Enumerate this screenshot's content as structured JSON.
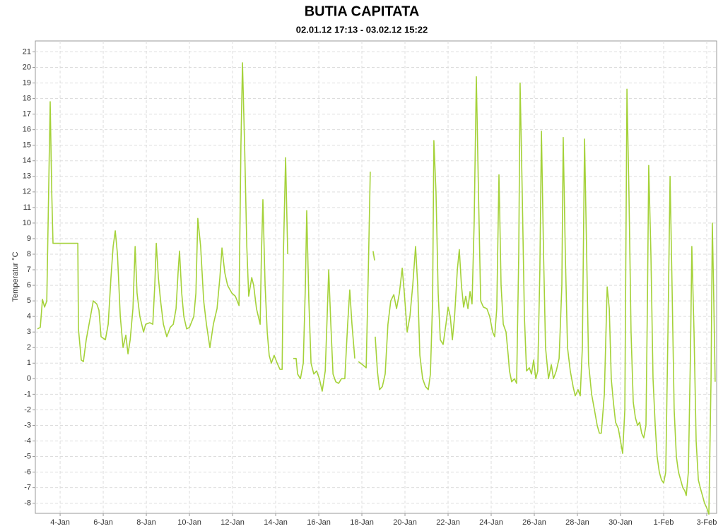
{
  "chart_data": {
    "type": "line",
    "title": "BUTIA CAPITATA",
    "subtitle": "02.01.12 17:13 - 03.02.12 15:22",
    "y_label": "Temperatur  °C",
    "grid": true,
    "xlim": [
      2.85,
      34.46
    ],
    "ylim": [
      -8.65,
      21.7
    ],
    "xticks": [
      {
        "value": 4,
        "label": "4-Jan"
      },
      {
        "value": 6,
        "label": "6-Jan"
      },
      {
        "value": 8,
        "label": "8-Jan"
      },
      {
        "value": 10,
        "label": "10-Jan"
      },
      {
        "value": 12,
        "label": "12-Jan"
      },
      {
        "value": 14,
        "label": "14-Jan"
      },
      {
        "value": 16,
        "label": "16-Jan"
      },
      {
        "value": 18,
        "label": "18-Jan"
      },
      {
        "value": 20,
        "label": "20-Jan"
      },
      {
        "value": 22,
        "label": "22-Jan"
      },
      {
        "value": 24,
        "label": "24-Jan"
      },
      {
        "value": 26,
        "label": "26-Jan"
      },
      {
        "value": 28,
        "label": "28-Jan"
      },
      {
        "value": 30,
        "label": "30-Jan"
      },
      {
        "value": 32,
        "label": "1-Feb"
      },
      {
        "value": 34,
        "label": "3-Feb"
      }
    ],
    "yticks": [
      -8,
      -7,
      -6,
      -5,
      -4,
      -3,
      -2,
      -1,
      0,
      1,
      2,
      3,
      4,
      5,
      6,
      7,
      8,
      9,
      10,
      11,
      12,
      13,
      14,
      15,
      16,
      17,
      18,
      19,
      20,
      21
    ],
    "x": [
      2.95,
      3.08,
      3.18,
      3.28,
      3.38,
      3.48,
      3.54,
      3.61,
      3.67,
      3.74,
      4.82,
      4.85,
      4.98,
      5.08,
      5.21,
      5.38,
      5.54,
      5.7,
      5.8,
      5.9,
      6.1,
      6.23,
      6.36,
      6.46,
      6.56,
      6.66,
      6.79,
      6.92,
      7.05,
      7.15,
      7.25,
      7.38,
      7.48,
      7.57,
      7.7,
      7.87,
      7.97,
      8.16,
      8.3,
      8.39,
      8.46,
      8.56,
      8.66,
      8.79,
      8.95,
      9.11,
      9.25,
      9.38,
      9.48,
      9.54,
      9.64,
      9.74,
      9.87,
      10.0,
      10.2,
      10.3,
      10.39,
      10.52,
      10.66,
      10.79,
      10.95,
      11.11,
      11.28,
      11.41,
      11.51,
      11.64,
      11.77,
      11.97,
      12.13,
      12.3,
      12.39,
      12.46,
      12.56,
      12.66,
      12.75,
      12.89,
      12.98,
      13.11,
      13.28,
      13.34,
      13.41,
      13.51,
      13.61,
      13.7,
      13.8,
      13.93,
      14.07,
      14.2,
      14.3,
      14.36,
      14.46,
      14.56,
      null,
      14.82,
      14.95,
      15.02,
      15.15,
      15.28,
      15.38,
      15.44,
      15.54,
      15.64,
      15.77,
      15.9,
      16.03,
      16.16,
      16.3,
      16.39,
      16.46,
      16.56,
      16.66,
      16.79,
      16.92,
      17.05,
      17.21,
      17.34,
      17.44,
      17.54,
      17.67,
      null,
      17.84,
      18.03,
      18.2,
      18.3,
      18.39,
      null,
      18.52,
      18.59,
      null,
      18.62,
      18.72,
      18.82,
      18.95,
      19.08,
      19.21,
      19.34,
      19.48,
      19.61,
      19.74,
      19.87,
      19.97,
      20.1,
      20.23,
      20.36,
      20.49,
      20.59,
      20.69,
      20.82,
      20.95,
      21.08,
      21.18,
      21.28,
      21.34,
      21.44,
      21.54,
      21.64,
      21.77,
      21.9,
      22.0,
      22.1,
      22.2,
      22.3,
      22.43,
      22.52,
      22.62,
      22.72,
      22.82,
      22.92,
      23.02,
      23.11,
      23.21,
      23.31,
      23.41,
      23.51,
      23.64,
      23.8,
      23.93,
      24.07,
      24.16,
      24.26,
      24.36,
      24.46,
      24.56,
      24.69,
      24.79,
      24.85,
      24.95,
      25.08,
      25.18,
      25.28,
      25.34,
      25.44,
      25.54,
      25.64,
      25.77,
      25.87,
      25.97,
      26.07,
      26.16,
      26.26,
      26.33,
      26.43,
      26.52,
      26.66,
      26.79,
      26.89,
      27.02,
      27.15,
      27.28,
      27.34,
      27.44,
      27.54,
      27.67,
      27.8,
      27.9,
      28.03,
      28.13,
      28.23,
      28.33,
      28.43,
      28.52,
      28.66,
      28.79,
      28.92,
      29.02,
      29.11,
      29.25,
      29.38,
      29.48,
      29.57,
      29.67,
      29.77,
      29.9,
      30.0,
      30.1,
      30.2,
      30.3,
      30.39,
      30.49,
      30.59,
      30.69,
      30.79,
      30.89,
      30.98,
      31.08,
      31.18,
      31.25,
      31.31,
      31.41,
      31.51,
      31.61,
      31.7,
      31.8,
      31.9,
      32.0,
      32.1,
      32.2,
      32.3,
      32.39,
      32.49,
      32.59,
      32.69,
      32.79,
      32.89,
      32.98,
      33.05,
      33.15,
      33.25,
      33.31,
      33.41,
      33.51,
      33.61,
      33.7,
      33.8,
      33.9,
      34.0,
      34.1,
      34.2,
      34.26,
      34.33,
      34.39
    ],
    "series": [
      {
        "color": "#a5d23a",
        "values": [
          3.2,
          3.3,
          5.1,
          4.6,
          5.0,
          13,
          17.8,
          12,
          8.7,
          8.7,
          8.7,
          3.2,
          1.2,
          1.1,
          2.5,
          3.8,
          5.0,
          4.8,
          4.4,
          2.7,
          2.5,
          3.5,
          6.5,
          8.5,
          9.5,
          8.0,
          4.0,
          2.0,
          2.8,
          1.6,
          2.5,
          4.5,
          8.5,
          5.5,
          4.0,
          3.0,
          3.5,
          3.6,
          3.5,
          6.0,
          8.7,
          6.5,
          5.0,
          3.5,
          2.7,
          3.3,
          3.5,
          4.5,
          7.0,
          8.2,
          5.5,
          4.0,
          3.2,
          3.3,
          4.0,
          5.5,
          10.3,
          8.5,
          5.0,
          3.5,
          2.0,
          3.5,
          4.5,
          6.5,
          8.4,
          6.8,
          6.0,
          5.5,
          5.3,
          4.7,
          15,
          20.3,
          15,
          8.5,
          5.3,
          6.5,
          6.0,
          4.5,
          3.5,
          8,
          11.5,
          6.0,
          3.0,
          1.5,
          1.0,
          1.5,
          1.0,
          0.6,
          0.6,
          8,
          14.2,
          8.0,
          null,
          1.3,
          1.3,
          0.3,
          0.0,
          1.0,
          6,
          10.8,
          5,
          1.0,
          0.3,
          0.5,
          0.0,
          -0.8,
          0.5,
          4,
          7.0,
          3.5,
          0.3,
          -0.2,
          -0.3,
          0.0,
          0.0,
          3.5,
          5.7,
          3.5,
          1.3,
          null,
          1.1,
          0.9,
          0.7,
          7,
          13.3,
          null,
          8.2,
          7.6,
          null,
          2.7,
          0.5,
          -0.7,
          -0.5,
          0.3,
          3.5,
          5.0,
          5.4,
          4.5,
          5.5,
          7.1,
          5.5,
          3.0,
          4.0,
          6.0,
          8.5,
          6.0,
          1.5,
          0.0,
          -0.5,
          -0.7,
          0.3,
          5,
          15.3,
          12,
          5.5,
          2.5,
          2.2,
          3.5,
          4.6,
          4.0,
          2.5,
          4.0,
          7.0,
          8.3,
          6.0,
          4.6,
          5.3,
          4.5,
          5.6,
          4.8,
          10,
          19.4,
          12,
          5,
          4.6,
          4.5,
          4.0,
          3.0,
          2.7,
          4.5,
          13.1,
          6,
          3.5,
          3.0,
          1.5,
          0.5,
          -0.2,
          0.0,
          -0.3,
          8,
          19.0,
          12,
          4,
          0.5,
          0.7,
          0.3,
          1.2,
          0.0,
          0.5,
          7,
          15.9,
          8,
          2.0,
          0.0,
          0.9,
          0.0,
          0.5,
          1.3,
          6,
          15.5,
          8,
          2.0,
          0.5,
          -0.5,
          -1.1,
          -0.7,
          -1.1,
          2,
          15.4,
          8,
          1.0,
          -1.0,
          -2.0,
          -3.0,
          -3.5,
          -3.5,
          -1.0,
          5.9,
          4.5,
          0.0,
          -1.5,
          -2.8,
          -3.2,
          -4.0,
          -4.8,
          -2.0,
          18.6,
          12,
          3.0,
          -1.5,
          -2.5,
          -3.0,
          -2.8,
          -3.5,
          -3.8,
          -3.0,
          5,
          13.7,
          8,
          0.0,
          -3.0,
          -5.0,
          -6.0,
          -6.5,
          -6.7,
          -6.0,
          3,
          13.0,
          6,
          -2,
          -5.0,
          -6.0,
          -6.5,
          -7.0,
          -7.2,
          -7.5,
          -6,
          2,
          8.5,
          3,
          -4,
          -6.5,
          -7.0,
          -7.5,
          -8.0,
          -8.3,
          -8.7,
          0,
          10.0,
          5,
          -0.2
        ]
      }
    ]
  }
}
